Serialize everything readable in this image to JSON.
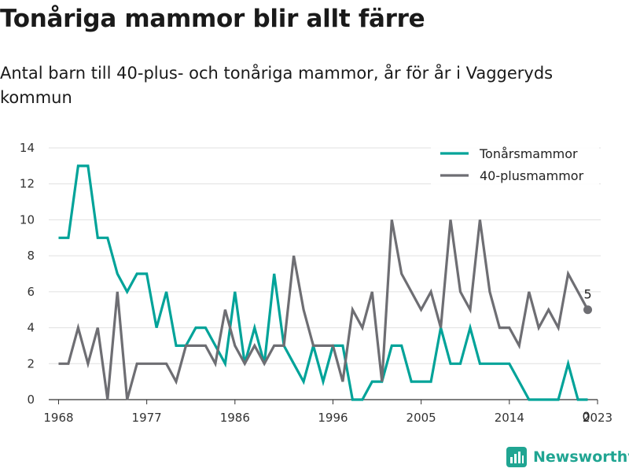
{
  "chart_data": {
    "type": "line",
    "title": "Tonåriga mammor blir allt färre",
    "subtitle": "Antal barn till 40-plus- och tonåriga mammor, år för år i Vaggeryds kommun",
    "xlabel": "",
    "ylabel": "",
    "xlim": [
      1967,
      2023
    ],
    "ylim": [
      0,
      14
    ],
    "x_ticks": [
      "1968",
      "1977",
      "1986",
      "1996",
      "2005",
      "2014",
      "2023"
    ],
    "y_ticks": [
      "0",
      "2",
      "4",
      "6",
      "8",
      "10",
      "12",
      "14"
    ],
    "grid": true,
    "legend_position": "top-right",
    "x": [
      1968,
      1969,
      1970,
      1971,
      1972,
      1973,
      1974,
      1975,
      1976,
      1977,
      1978,
      1979,
      1980,
      1981,
      1982,
      1983,
      1984,
      1985,
      1986,
      1987,
      1988,
      1989,
      1990,
      1991,
      1992,
      1993,
      1994,
      1995,
      1996,
      1997,
      1998,
      1999,
      2000,
      2001,
      2002,
      2003,
      2004,
      2005,
      2006,
      2007,
      2008,
      2009,
      2010,
      2011,
      2012,
      2013,
      2014,
      2015,
      2016,
      2017,
      2018,
      2019,
      2020,
      2021,
      2022
    ],
    "series": [
      {
        "name": "Tonårsmammor",
        "color": "#00a399",
        "values": [
          9,
          9,
          13,
          13,
          9,
          9,
          7,
          6,
          7,
          7,
          4,
          6,
          3,
          3,
          4,
          4,
          3,
          2,
          6,
          2,
          4,
          2,
          7,
          3,
          2,
          1,
          3,
          1,
          3,
          3,
          0,
          0,
          1,
          1,
          3,
          3,
          1,
          1,
          1,
          4,
          2,
          2,
          4,
          2,
          2,
          2,
          2,
          1,
          0,
          0,
          0,
          0,
          2,
          0,
          0
        ],
        "end_label": "0"
      },
      {
        "name": "40-plusmammor",
        "color": "#6e6e73",
        "values": [
          2,
          2,
          4,
          2,
          4,
          0,
          6,
          0,
          2,
          2,
          2,
          2,
          1,
          3,
          3,
          3,
          2,
          5,
          3,
          2,
          3,
          2,
          3,
          3,
          8,
          5,
          3,
          3,
          3,
          1,
          5,
          4,
          6,
          1,
          10,
          7,
          6,
          5,
          6,
          4,
          10,
          6,
          5,
          10,
          6,
          4,
          4,
          3,
          6,
          4,
          5,
          4,
          7,
          6,
          5
        ],
        "end_label": "5"
      }
    ]
  },
  "branding": {
    "logo_text": "Newsworthy",
    "logo_color": "#20a592",
    "logo_icon": "bar-chart-logo-icon"
  }
}
